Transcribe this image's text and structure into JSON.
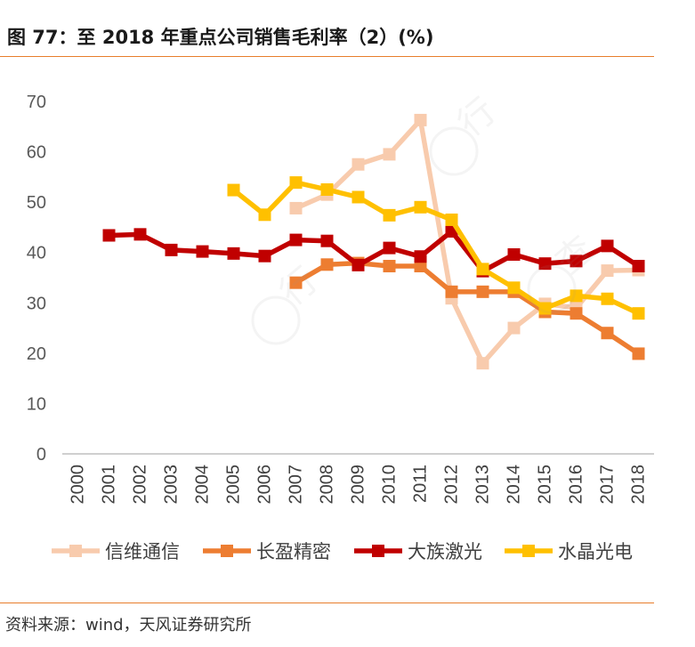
{
  "header": {
    "title": "图 77：至 2018 年重点公司销售毛利率（2）(%)"
  },
  "footer": {
    "source": "资料来源：wind，天风证券研究所"
  },
  "chart_data": {
    "type": "line",
    "title": "图 77：至 2018 年重点公司销售毛利率（2）(%)",
    "xlabel": "",
    "ylabel": "",
    "ylim": [
      0,
      70
    ],
    "yticks": [
      "0",
      "10",
      "20",
      "30",
      "40",
      "50",
      "60",
      "70"
    ],
    "categories": [
      "2000",
      "2001",
      "2002",
      "2003",
      "2004",
      "2005",
      "2006",
      "2007",
      "2008",
      "2009",
      "2010",
      "2011",
      "2012",
      "2013",
      "2014",
      "2015",
      "2016",
      "2017",
      "2018"
    ],
    "legend_position": "bottom",
    "series": [
      {
        "name": "信维通信",
        "color": "#f8cbad",
        "values": [
          null,
          null,
          null,
          null,
          null,
          null,
          null,
          48.8,
          51.5,
          57.5,
          59.5,
          66.3,
          30.9,
          18.0,
          25.0,
          29.8,
          29.0,
          36.4,
          36.5
        ]
      },
      {
        "name": "长盈精密",
        "color": "#ed7d31",
        "values": [
          null,
          null,
          null,
          null,
          null,
          null,
          null,
          34.0,
          37.6,
          37.9,
          37.3,
          37.3,
          32.2,
          32.2,
          32.2,
          28.2,
          27.9,
          24.0,
          19.9
        ]
      },
      {
        "name": "大族激光",
        "color": "#c00000",
        "values": [
          null,
          43.4,
          43.6,
          40.5,
          40.2,
          39.8,
          39.3,
          42.5,
          42.3,
          37.5,
          40.9,
          39.2,
          44.2,
          36.3,
          39.6,
          37.8,
          38.3,
          41.3,
          37.3
        ]
      },
      {
        "name": "水晶光电",
        "color": "#ffc000",
        "values": [
          null,
          null,
          null,
          null,
          null,
          52.4,
          47.5,
          53.9,
          52.5,
          51.0,
          47.4,
          49.0,
          46.5,
          36.7,
          33.0,
          28.9,
          31.4,
          30.8,
          27.9
        ]
      }
    ]
  },
  "watermark": {
    "text": "HongHongChao"
  }
}
